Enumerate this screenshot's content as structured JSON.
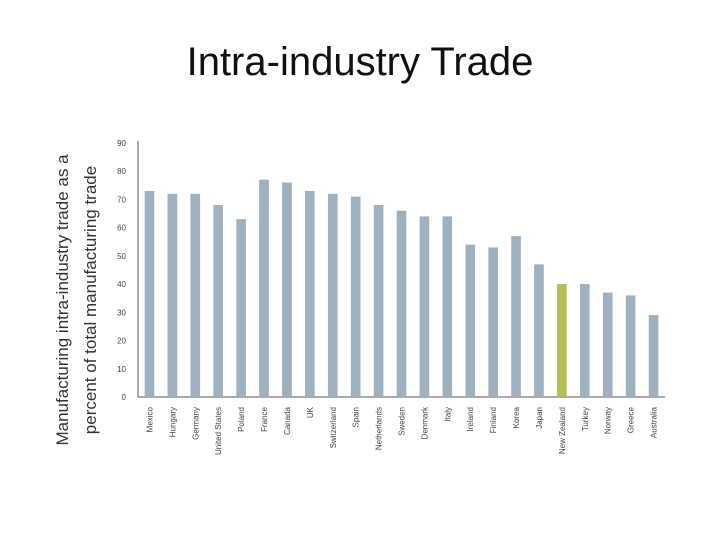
{
  "slide": {
    "title": "Intra-industry Trade"
  },
  "chart_data": {
    "type": "bar",
    "title": "Intra-industry Trade",
    "ylabel_lines": [
      "Manufacturing intra-industry trade as a",
      "percent of total manufacturing trade"
    ],
    "xlabel": "",
    "ylim": [
      0,
      90
    ],
    "yticks": [
      0,
      10,
      20,
      30,
      40,
      50,
      60,
      70,
      80,
      90
    ],
    "grid": false,
    "categories": [
      "Mexico",
      "Hungary",
      "Germany",
      "United States",
      "Poland",
      "France",
      "Canada",
      "UK",
      "Switzerland",
      "Spain",
      "Netherlands",
      "Sweden",
      "Denmark",
      "Italy",
      "Ireland",
      "Finland",
      "Korea",
      "Japan",
      "New Zealand",
      "Turkey",
      "Norway",
      "Greece",
      "Australia"
    ],
    "values": [
      73,
      72,
      72,
      68,
      63,
      77,
      76,
      73,
      72,
      71,
      68,
      66,
      64,
      64,
      54,
      53,
      57,
      47,
      40,
      40,
      37,
      36,
      29
    ],
    "highlight_category": "New Zealand",
    "colors": {
      "bar": "#9fb0bf",
      "highlight": "#b5bf57",
      "axis": "#555555"
    }
  }
}
